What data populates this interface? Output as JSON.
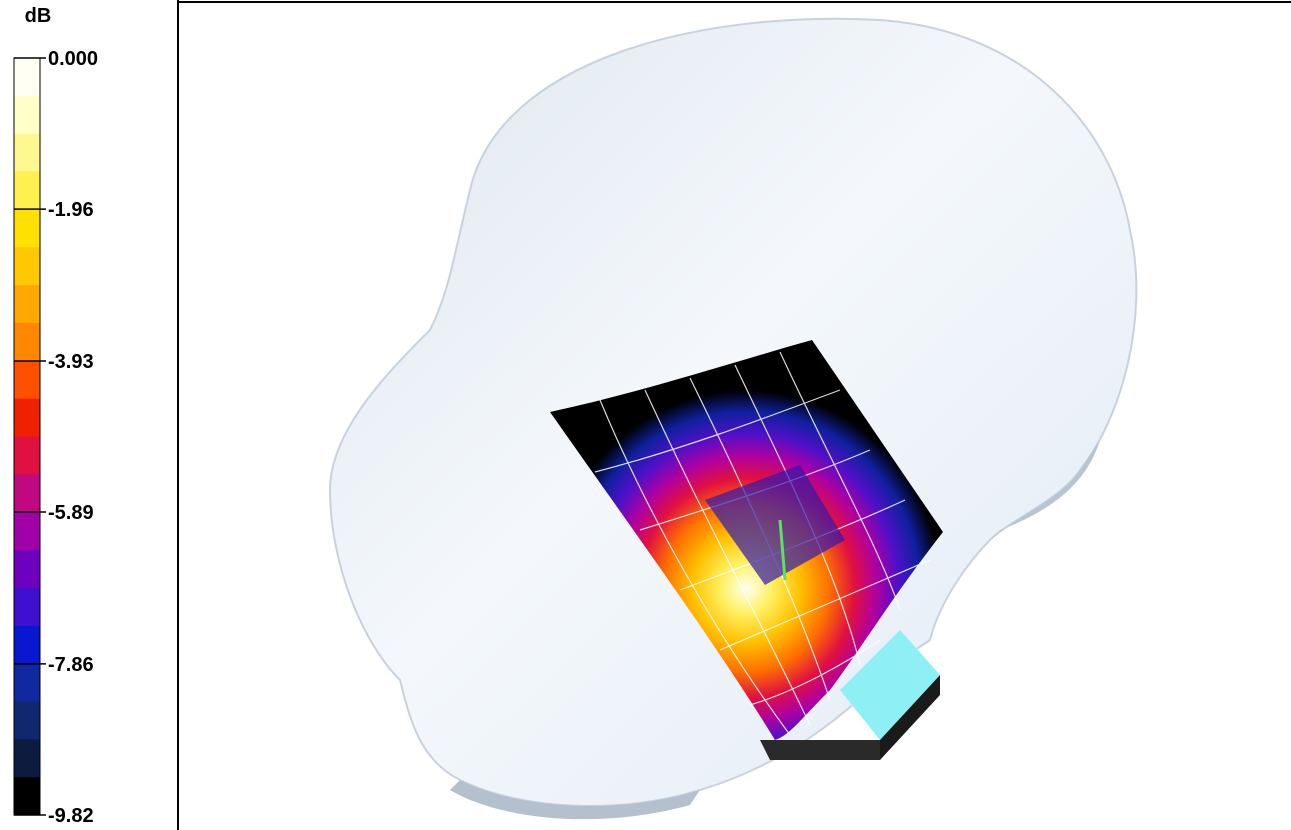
{
  "colorbar": {
    "unit": "dB",
    "range": [
      -9.82,
      0
    ],
    "ticks": [
      {
        "value": 0,
        "label": "0.000"
      },
      -1.96,
      -3.93,
      -5.89,
      -7.86,
      -9.82
    ],
    "colors": [
      "#fffff4",
      "#ffffc8",
      "#fff890",
      "#fff050",
      "#ffe000",
      "#ffc800",
      "#ffa800",
      "#ff8800",
      "#ff5000",
      "#f02000",
      "#e01040",
      "#c00880",
      "#a000a8",
      "#7000c0",
      "#4010d0",
      "#0818d0",
      "#1028a0",
      "#102870",
      "#0c1c40",
      "#000000"
    ]
  }
}
